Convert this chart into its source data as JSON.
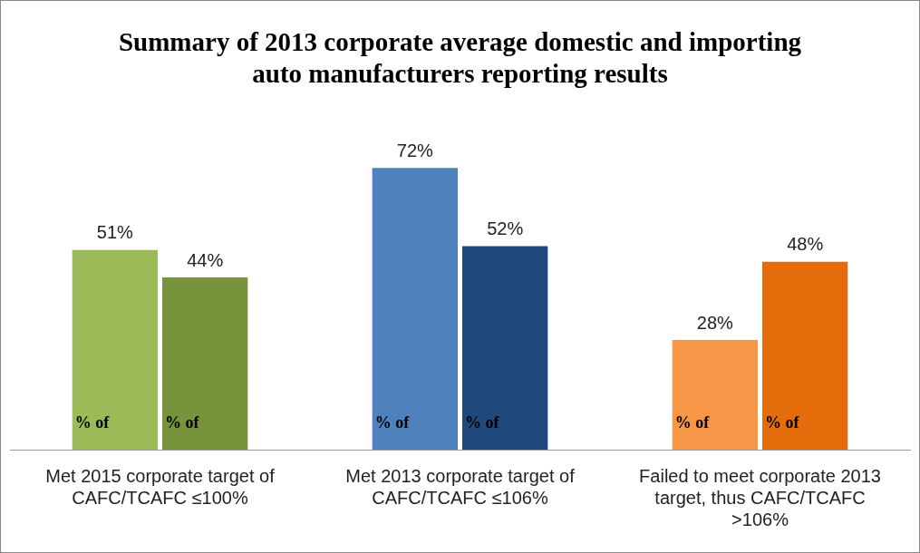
{
  "chart_data": {
    "type": "bar",
    "title": "Summary of 2013 corporate average domestic and importing auto manufacturers reporting results",
    "categories": [
      "Met 2015 corporate target of CAFC/TCAFC ≤100%",
      "Met 2013 corporate target of CAFC/TCAFC ≤106%",
      "Failed to meet corporate 2013 target, thus CAFC/TCAFC >106%"
    ],
    "series": [
      {
        "name": "% of",
        "colors": [
          "#9bbb59",
          "#4f81bd",
          "#f79646"
        ],
        "values": [
          51,
          72,
          28
        ],
        "value_labels": [
          "51%",
          "72%",
          "28%"
        ]
      },
      {
        "name": "% of",
        "colors": [
          "#77933c",
          "#1f497d",
          "#e46c0a"
        ],
        "values": [
          44,
          52,
          48
        ],
        "value_labels": [
          "44%",
          "52%",
          "48%"
        ]
      }
    ],
    "tick_labels": "x",
    "grid": false,
    "legend": false
  }
}
